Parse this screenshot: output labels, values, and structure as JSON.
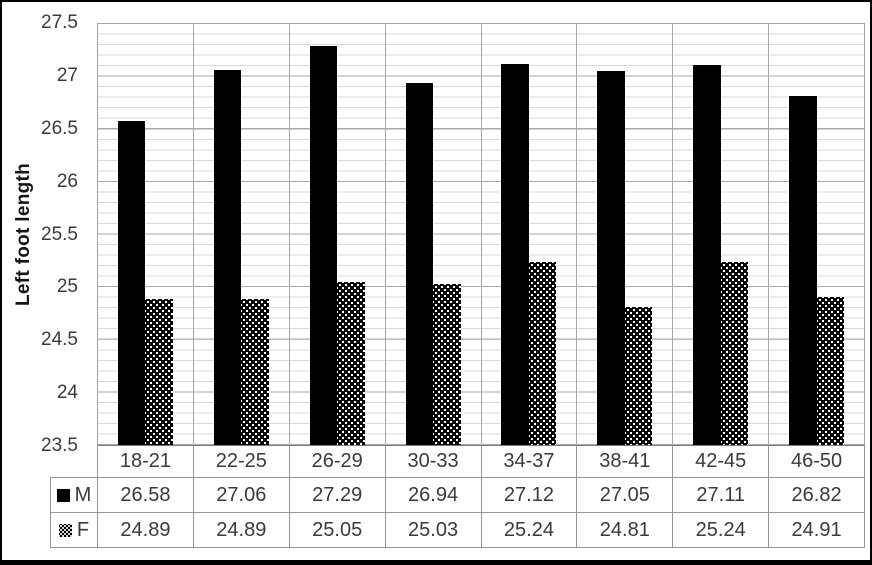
{
  "chart_data": {
    "type": "bar",
    "title": "",
    "xlabel": "",
    "ylabel": "Left foot length",
    "ylim": [
      23.5,
      27.5
    ],
    "y_major_step": 0.5,
    "y_minor_step": 0.1,
    "y_tick_labels": [
      "27.5",
      "27",
      "26.5",
      "26",
      "25.5",
      "25",
      "24.5",
      "24",
      "23.5"
    ],
    "categories": [
      "18-21",
      "22-25",
      "26-29",
      "30-33",
      "34-37",
      "38-41",
      "42-45",
      "46-50"
    ],
    "series": [
      {
        "name": "M",
        "key_style": "solid-black",
        "values": [
          26.58,
          27.06,
          27.29,
          26.94,
          27.12,
          27.05,
          27.11,
          26.82
        ]
      },
      {
        "name": "F",
        "key_style": "checkered",
        "values": [
          24.89,
          24.89,
          25.05,
          25.03,
          25.24,
          24.81,
          25.24,
          24.91
        ]
      }
    ],
    "legend_position": "data-table-left",
    "grid": "horizontal major+minor, vertical category separators",
    "data_table_shown": true
  },
  "colors": {
    "bar_m": "#000000",
    "bar_f_background": "#000000",
    "bar_f_dots": "#ffffff",
    "axis_text": "#3a3a3a",
    "grid_minor": "#d9d9d9",
    "grid_major": "#a8a8a8",
    "table_border": "#969696",
    "frame_border": "#000000",
    "background": "#ffffff"
  }
}
